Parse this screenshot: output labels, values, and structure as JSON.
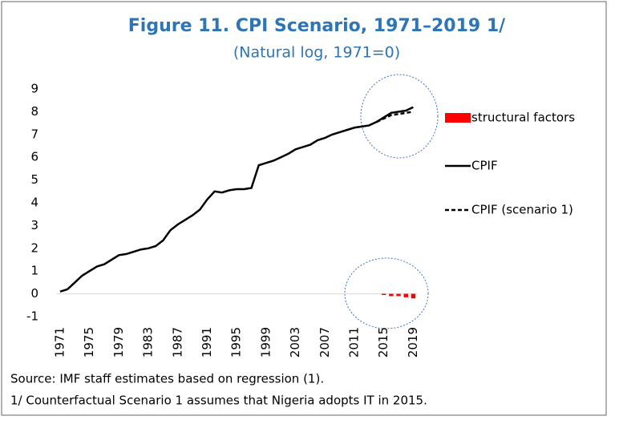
{
  "chart_data": {
    "type": "bar-line",
    "title": "Figure 11. CPI Scenario, 1971–2019 1/",
    "subtitle": "(Natural log, 1971=0)",
    "categories": [
      "1971",
      null,
      null,
      null,
      "1975",
      null,
      null,
      null,
      "1979",
      null,
      null,
      null,
      "1983",
      null,
      null,
      null,
      "1987",
      null,
      null,
      null,
      "1991",
      null,
      null,
      null,
      "1995",
      null,
      null,
      null,
      "1999",
      null,
      null,
      null,
      "2003",
      null,
      null,
      null,
      "2007",
      null,
      null,
      null,
      "2011",
      null,
      null,
      null,
      "2015",
      null,
      null,
      null,
      "2019"
    ],
    "series": [
      {
        "name": "structural factors",
        "type": "bar",
        "color": "#ff0000",
        "values": [
          0,
          0,
          0,
          0,
          0,
          0,
          0,
          0,
          0,
          0,
          0,
          0,
          0,
          0,
          0,
          0,
          0,
          0,
          0,
          0,
          0,
          0,
          0,
          0,
          0,
          0,
          0,
          0,
          0,
          0,
          0,
          0,
          0,
          0,
          0,
          0,
          0,
          0,
          0,
          0,
          0,
          0,
          0,
          0,
          -0.05,
          -0.1,
          -0.1,
          -0.15,
          -0.2
        ]
      },
      {
        "name": "CPIF",
        "type": "line",
        "color": "#000000",
        "dash": false,
        "values": [
          0.1,
          0.2,
          0.5,
          0.8,
          1.0,
          1.2,
          1.3,
          1.5,
          1.7,
          1.75,
          1.85,
          1.95,
          2.0,
          2.1,
          2.35,
          2.8,
          3.05,
          3.25,
          3.45,
          3.7,
          4.15,
          4.5,
          4.45,
          4.55,
          4.6,
          4.6,
          4.65,
          5.65,
          5.75,
          5.85,
          6.0,
          6.15,
          6.35,
          6.45,
          6.55,
          6.75,
          6.85,
          7.0,
          7.1,
          7.2,
          7.3,
          7.35,
          7.4,
          7.55,
          7.75,
          7.95,
          8.0,
          8.05,
          8.2
        ]
      },
      {
        "name": "CPIF (scenario 1)",
        "type": "line",
        "color": "#000000",
        "dash": true,
        "values": [
          null,
          null,
          null,
          null,
          null,
          null,
          null,
          null,
          null,
          null,
          null,
          null,
          null,
          null,
          null,
          null,
          null,
          null,
          null,
          null,
          null,
          null,
          null,
          null,
          null,
          null,
          null,
          null,
          null,
          null,
          null,
          null,
          null,
          null,
          null,
          null,
          null,
          null,
          null,
          null,
          null,
          null,
          null,
          7.55,
          7.7,
          7.85,
          7.9,
          7.95,
          8.0
        ]
      }
    ],
    "ylim": [
      -1,
      9
    ],
    "yticks": [
      -1,
      0,
      1,
      2,
      3,
      4,
      5,
      6,
      7,
      8,
      9
    ],
    "grid": false,
    "legend": "right",
    "notes": [
      "Source:  IMF staff estimates based on regression (1).",
      "1/ Counterfactual Scenario 1 assumes that Nigeria adopts IT in 2015."
    ]
  }
}
